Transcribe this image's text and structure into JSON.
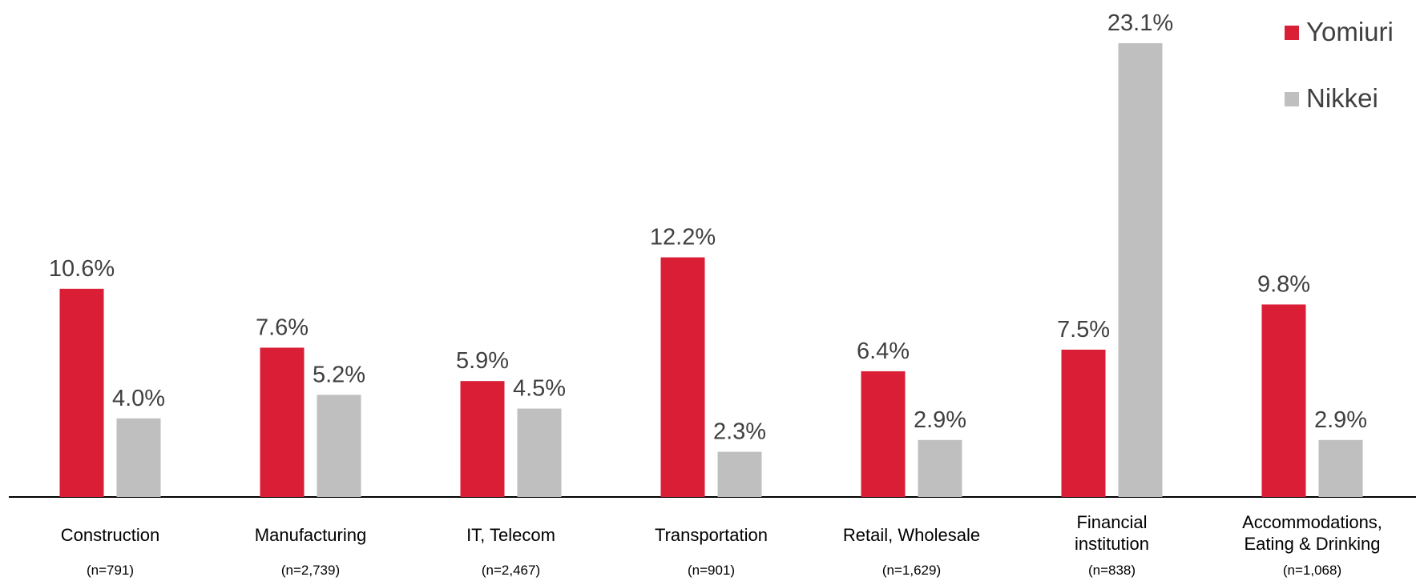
{
  "chart_data": {
    "type": "bar",
    "categories": [
      "Construction",
      "Manufacturing",
      "IT, Telecom",
      "Transportation",
      "Retail, Wholesale",
      "Financial\ninstitution",
      "Accommodations,\nEating & Drinking"
    ],
    "sample_sizes": [
      "(n=791)",
      "(n=2,739)",
      "(n=2,467)",
      "(n=901)",
      "(n=1,629)",
      "(n=838)",
      "(n=1,068)"
    ],
    "series": [
      {
        "name": "Yomiuri",
        "color": "#d91e36",
        "values": [
          10.6,
          7.6,
          5.9,
          12.2,
          6.4,
          7.5,
          9.8
        ],
        "value_labels": [
          "10.6%",
          "7.6%",
          "5.9%",
          "12.2%",
          "6.4%",
          "7.5%",
          "9.8%"
        ]
      },
      {
        "name": "Nikkei",
        "color": "#bfbfbf",
        "values": [
          4.0,
          5.2,
          4.5,
          2.3,
          2.9,
          23.1,
          2.9
        ],
        "value_labels": [
          "4.0%",
          "5.2%",
          "4.5%",
          "2.3%",
          "2.9%",
          "23.1%",
          "2.9%"
        ]
      }
    ],
    "ylim": [
      0,
      25.3
    ],
    "legend": "top-right"
  }
}
